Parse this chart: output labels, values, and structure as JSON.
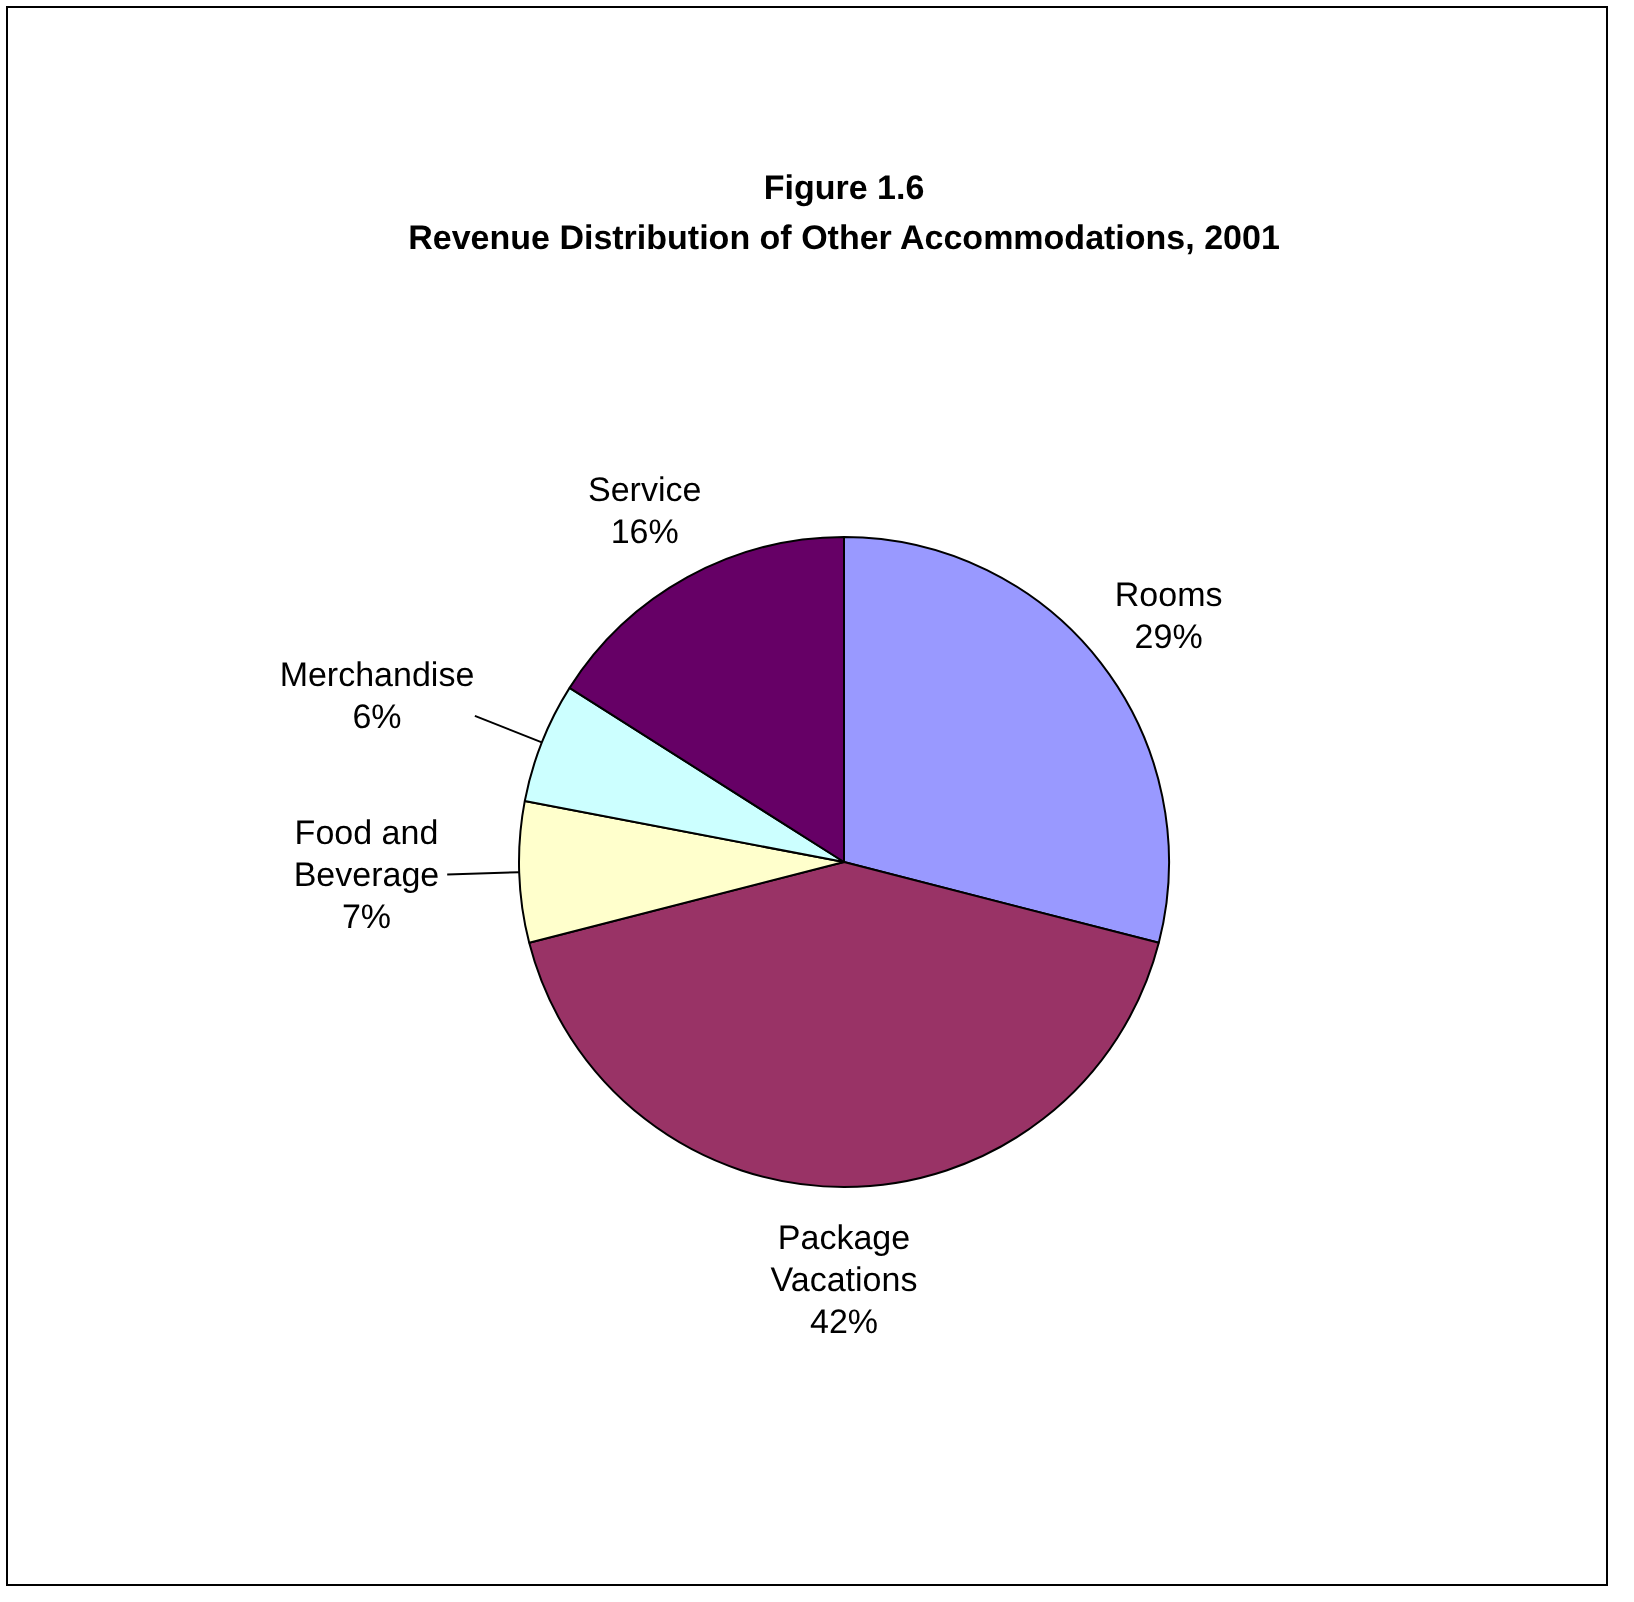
{
  "chart_data": {
    "type": "pie",
    "title": "Figure 1.6",
    "subtitle": "Revenue Distribution of Other Accommodations, 2001",
    "categories": [
      "Rooms",
      "Package Vacations",
      "Food and Beverage",
      "Merchandise",
      "Service"
    ],
    "values": [
      29,
      42,
      7,
      6,
      16
    ],
    "colors": [
      "#9999ff",
      "#993366",
      "#ffffcc",
      "#ccffff",
      "#660066"
    ],
    "value_labels": [
      "29%",
      "42%",
      "7%",
      "6%",
      "16%"
    ],
    "legend": false
  }
}
